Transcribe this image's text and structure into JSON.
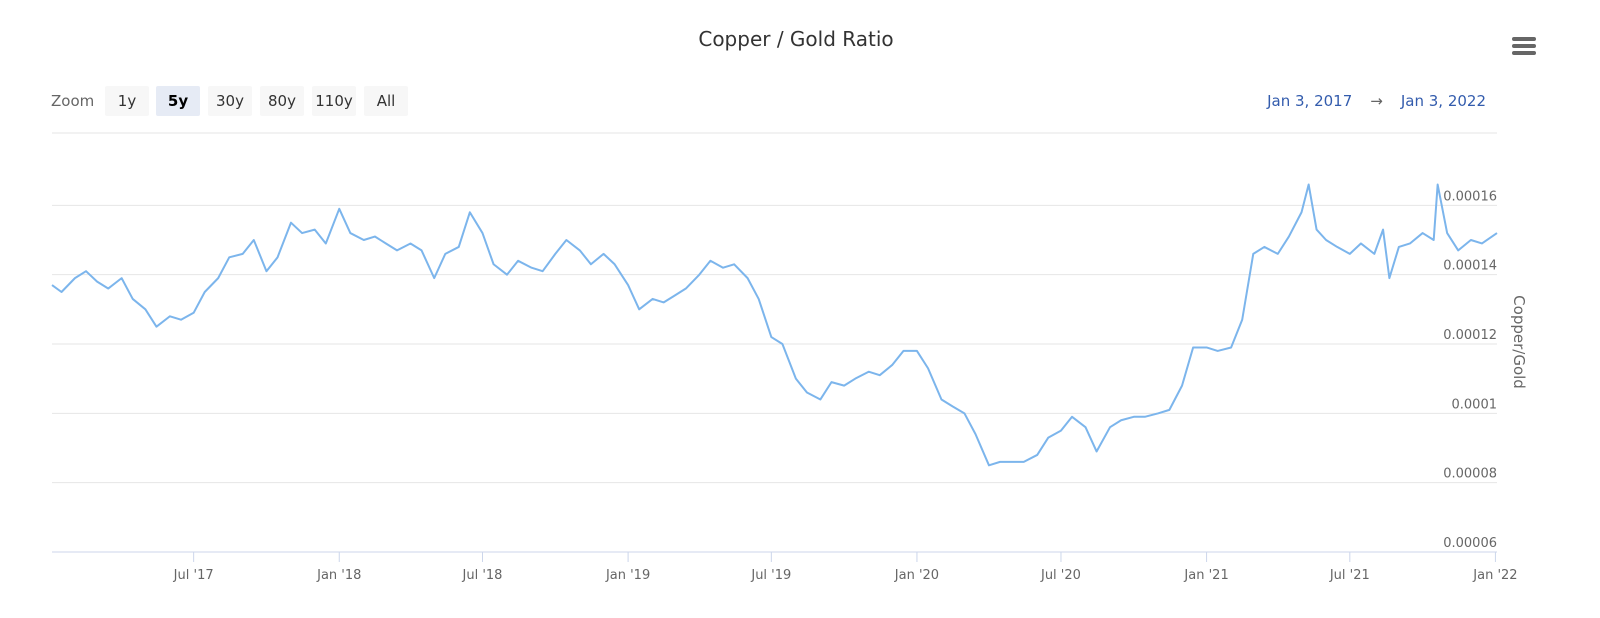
{
  "chart_data": {
    "type": "line",
    "title": "Copper / Gold Ratio",
    "range_selector": {
      "label": "Zoom",
      "buttons": [
        "1y",
        "5y",
        "30y",
        "80y",
        "110y",
        "All"
      ],
      "selected": 1
    },
    "date_range": {
      "from": "Jan 3, 2017",
      "separator": "→",
      "to": "Jan 3, 2022"
    },
    "y_axis_label": "Copper/Gold",
    "xlim": [
      "2017-01-03",
      "2022-01-03"
    ],
    "xticks": [
      {
        "value": "2017-07-01",
        "label": "Jul '17"
      },
      {
        "value": "2018-01-01",
        "label": "Jan '18"
      },
      {
        "value": "2018-07-01",
        "label": "Jul '18"
      },
      {
        "value": "2019-01-01",
        "label": "Jan '19"
      },
      {
        "value": "2019-07-01",
        "label": "Jul '19"
      },
      {
        "value": "2020-01-01",
        "label": "Jan '20"
      },
      {
        "value": "2020-07-01",
        "label": "Jul '20"
      },
      {
        "value": "2021-01-01",
        "label": "Jan '21"
      },
      {
        "value": "2021-07-01",
        "label": "Jul '21"
      },
      {
        "value": "2022-01-01",
        "label": "Jan '22"
      }
    ],
    "ylim": [
      6e-05,
      0.00018
    ],
    "yticks": [
      6e-05,
      8e-05,
      0.0001,
      0.00012,
      0.00014,
      0.00016
    ],
    "grid": true,
    "x": [
      "2017-01-03",
      "2017-01-15",
      "2017-02-01",
      "2017-02-15",
      "2017-03-01",
      "2017-03-15",
      "2017-04-01",
      "2017-04-15",
      "2017-05-01",
      "2017-05-15",
      "2017-06-01",
      "2017-06-15",
      "2017-07-01",
      "2017-07-15",
      "2017-08-01",
      "2017-08-15",
      "2017-09-01",
      "2017-09-15",
      "2017-10-01",
      "2017-10-15",
      "2017-11-01",
      "2017-11-15",
      "2017-12-01",
      "2017-12-15",
      "2018-01-01",
      "2018-01-15",
      "2018-02-01",
      "2018-02-15",
      "2018-03-01",
      "2018-03-15",
      "2018-04-01",
      "2018-04-15",
      "2018-05-01",
      "2018-05-15",
      "2018-06-01",
      "2018-06-15",
      "2018-07-01",
      "2018-07-15",
      "2018-08-01",
      "2018-08-15",
      "2018-09-01",
      "2018-09-15",
      "2018-10-01",
      "2018-10-15",
      "2018-11-01",
      "2018-11-15",
      "2018-12-01",
      "2018-12-15",
      "2019-01-01",
      "2019-01-15",
      "2019-02-01",
      "2019-02-15",
      "2019-03-01",
      "2019-03-15",
      "2019-04-01",
      "2019-04-15",
      "2019-05-01",
      "2019-05-15",
      "2019-06-01",
      "2019-06-15",
      "2019-07-01",
      "2019-07-15",
      "2019-08-01",
      "2019-08-15",
      "2019-09-01",
      "2019-09-15",
      "2019-10-01",
      "2019-10-15",
      "2019-11-01",
      "2019-11-15",
      "2019-12-01",
      "2019-12-15",
      "2020-01-01",
      "2020-01-15",
      "2020-02-01",
      "2020-02-15",
      "2020-03-01",
      "2020-03-15",
      "2020-04-01",
      "2020-04-15",
      "2020-05-01",
      "2020-05-15",
      "2020-06-01",
      "2020-06-15",
      "2020-07-01",
      "2020-07-15",
      "2020-08-01",
      "2020-08-15",
      "2020-09-01",
      "2020-09-15",
      "2020-10-01",
      "2020-10-15",
      "2020-11-01",
      "2020-11-15",
      "2020-12-01",
      "2020-12-15",
      "2021-01-01",
      "2021-01-15",
      "2021-02-01",
      "2021-02-15",
      "2021-03-01",
      "2021-03-15",
      "2021-04-01",
      "2021-04-15",
      "2021-05-01",
      "2021-05-10",
      "2021-05-20",
      "2021-06-01",
      "2021-06-15",
      "2021-07-01",
      "2021-07-15",
      "2021-08-01",
      "2021-08-12",
      "2021-08-20",
      "2021-09-01",
      "2021-09-15",
      "2021-10-01",
      "2021-10-15",
      "2021-10-20",
      "2021-11-01",
      "2021-11-15",
      "2021-12-01",
      "2021-12-15",
      "2022-01-03"
    ],
    "series": [
      {
        "name": "Copper/Gold",
        "color": "#7cb5ec",
        "values": [
          0.000137,
          0.000135,
          0.000139,
          0.000141,
          0.000138,
          0.000136,
          0.000139,
          0.000133,
          0.00013,
          0.000125,
          0.000128,
          0.000127,
          0.000129,
          0.000135,
          0.000139,
          0.000145,
          0.000146,
          0.00015,
          0.000141,
          0.000145,
          0.000155,
          0.000152,
          0.000153,
          0.000149,
          0.000159,
          0.000152,
          0.00015,
          0.000151,
          0.000149,
          0.000147,
          0.000149,
          0.000147,
          0.000139,
          0.000146,
          0.000148,
          0.000158,
          0.000152,
          0.000143,
          0.00014,
          0.000144,
          0.000142,
          0.000141,
          0.000146,
          0.00015,
          0.000147,
          0.000143,
          0.000146,
          0.000143,
          0.000137,
          0.00013,
          0.000133,
          0.000132,
          0.000134,
          0.000136,
          0.00014,
          0.000144,
          0.000142,
          0.000143,
          0.000139,
          0.000133,
          0.000122,
          0.00012,
          0.00011,
          0.000106,
          0.000104,
          0.000109,
          0.000108,
          0.00011,
          0.000112,
          0.000111,
          0.000114,
          0.000118,
          0.000118,
          0.000113,
          0.000104,
          0.000102,
          0.0001,
          9.4e-05,
          8.5e-05,
          8.6e-05,
          8.6e-05,
          8.6e-05,
          8.8e-05,
          9.3e-05,
          9.5e-05,
          9.9e-05,
          9.6e-05,
          8.9e-05,
          9.6e-05,
          9.8e-05,
          9.9e-05,
          9.9e-05,
          0.0001,
          0.000101,
          0.000108,
          0.000119,
          0.000119,
          0.000118,
          0.000119,
          0.000127,
          0.000146,
          0.000148,
          0.000146,
          0.000151,
          0.000158,
          0.000166,
          0.000153,
          0.00015,
          0.000148,
          0.000146,
          0.000149,
          0.000146,
          0.000153,
          0.000139,
          0.000148,
          0.000149,
          0.000152,
          0.00015,
          0.000166,
          0.000152,
          0.000147,
          0.00015,
          0.000149,
          0.000152
        ]
      }
    ]
  }
}
